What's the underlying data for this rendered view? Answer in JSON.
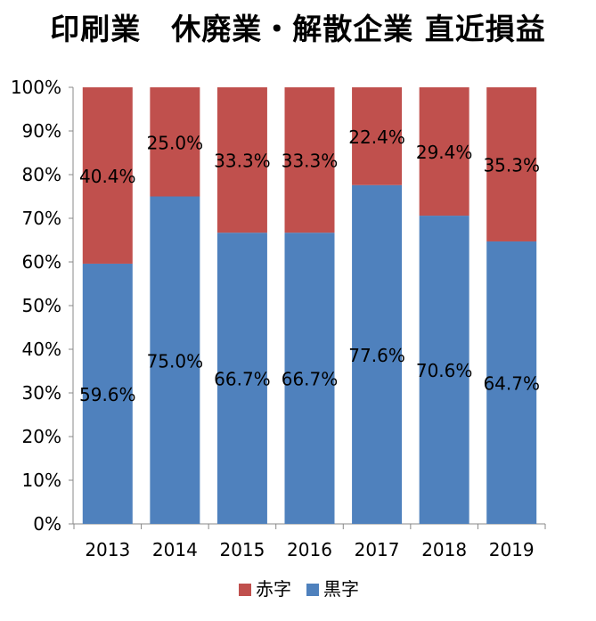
{
  "chart_data": {
    "type": "bar",
    "stacked": true,
    "percent": true,
    "title": "印刷業　休廃業・解散企業 直近損益",
    "categories": [
      "2013",
      "2014",
      "2015",
      "2016",
      "2017",
      "2018",
      "2019"
    ],
    "series": [
      {
        "name": "黒字",
        "color": "#4F81BD",
        "values": [
          59.6,
          75.0,
          66.7,
          66.7,
          77.6,
          70.6,
          64.7
        ],
        "labels": [
          "59.6%",
          "75.0%",
          "66.7%",
          "66.7%",
          "77.6%",
          "70.6%",
          "64.7%"
        ]
      },
      {
        "name": "赤字",
        "color": "#C0504D",
        "values": [
          40.4,
          25.0,
          33.3,
          33.3,
          22.4,
          29.4,
          35.3
        ],
        "labels": [
          "40.4%",
          "25.0%",
          "33.3%",
          "33.3%",
          "22.4%",
          "29.4%",
          "35.3%"
        ]
      }
    ],
    "yticks": [
      "0%",
      "10%",
      "20%",
      "30%",
      "40%",
      "50%",
      "60%",
      "70%",
      "80%",
      "90%",
      "100%"
    ],
    "ylim": [
      0,
      100
    ],
    "grid": false,
    "legend": {
      "position": "bottom",
      "order": [
        "赤字",
        "黒字"
      ]
    }
  }
}
